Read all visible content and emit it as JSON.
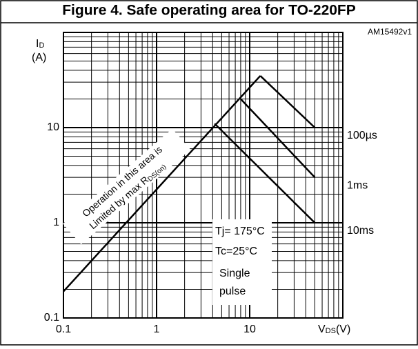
{
  "chart_data": {
    "type": "line",
    "title": "Figure 4. Safe operating area for TO-220FP",
    "code": "AM15492v1",
    "y_label": {
      "main": "I",
      "sub": "D",
      "unit": "(A)"
    },
    "x_label": {
      "main": "V",
      "sub": "DS",
      "unit": "(V)"
    },
    "log_x": true,
    "log_y": true,
    "grid": true,
    "minor_grid": true,
    "xlim": [
      0.1,
      100
    ],
    "ylim": [
      0.1,
      100
    ],
    "xticks": [
      0.1,
      1,
      10
    ],
    "yticks": [
      0.1,
      1,
      10
    ],
    "series": [
      {
        "name": "RDS(on) limit",
        "color": "#000000",
        "x": [
          0.1,
          13
        ],
        "values": [
          0.19,
          35
        ]
      },
      {
        "name": "100µs",
        "color": "#000000",
        "x": [
          13,
          50
        ],
        "values": [
          35,
          10
        ]
      },
      {
        "name": "1ms",
        "color": "#000000",
        "x": [
          8,
          50
        ],
        "values": [
          20,
          3
        ]
      },
      {
        "name": "10ms",
        "color": "#000000",
        "x": [
          4.2,
          50
        ],
        "values": [
          11,
          1
        ]
      }
    ],
    "curve_labels": [
      "100µs",
      "1ms",
      "10ms"
    ],
    "conditions": [
      "Tj= 175°C",
      "Tc=25°C",
      "Single",
      "pulse"
    ],
    "region_note": {
      "lines": [
        "Operation in this area is",
        "Limited by max R"
      ],
      "sub": "DS(on)"
    }
  }
}
